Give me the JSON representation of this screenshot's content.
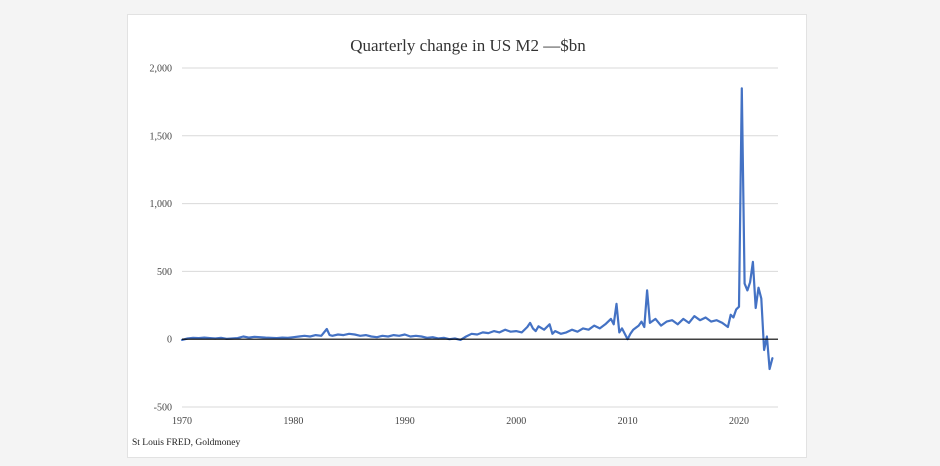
{
  "chart_data": {
    "type": "line",
    "title": "Quarterly change in US M2 —$bn",
    "source": "St Louis FRED, Goldmoney",
    "xlabel": "",
    "ylabel": "",
    "xlim": [
      1970,
      2023.5
    ],
    "ylim": [
      -500,
      2000
    ],
    "x_ticks": [
      1970,
      1980,
      1990,
      2000,
      2010,
      2020
    ],
    "y_ticks": [
      -500,
      0,
      500,
      1000,
      1500,
      2000
    ],
    "y_tick_labels": [
      "-500",
      "0",
      "500",
      "1,000",
      "1,500",
      "2,000"
    ],
    "grid": "horizontal",
    "line_color": "#4472c4",
    "zero_line_color": "#000000",
    "series": [
      {
        "x": [
          1970.0,
          1970.5,
          1971.0,
          1971.5,
          1972.0,
          1972.5,
          1973.0,
          1973.5,
          1974.0,
          1974.5,
          1975.0,
          1975.5,
          1976.0,
          1976.5,
          1977.0,
          1977.5,
          1978.0,
          1978.5,
          1979.0,
          1979.5,
          1980.0,
          1980.5,
          1981.0,
          1981.5,
          1982.0,
          1982.5,
          1983.0,
          1983.25,
          1983.5,
          1984.0,
          1984.5,
          1985.0,
          1985.5,
          1986.0,
          1986.5,
          1987.0,
          1987.5,
          1988.0,
          1988.5,
          1989.0,
          1989.5,
          1990.0,
          1990.5,
          1991.0,
          1991.5,
          1992.0,
          1992.5,
          1993.0,
          1993.5,
          1994.0,
          1994.5,
          1995.0,
          1995.5,
          1996.0,
          1996.5,
          1997.0,
          1997.5,
          1998.0,
          1998.5,
          1999.0,
          1999.5,
          2000.0,
          2000.5,
          2001.0,
          2001.25,
          2001.5,
          2001.75,
          2002.0,
          2002.5,
          2003.0,
          2003.25,
          2003.5,
          2004.0,
          2004.5,
          2005.0,
          2005.5,
          2006.0,
          2006.5,
          2007.0,
          2007.5,
          2008.0,
          2008.5,
          2008.75,
          2009.0,
          2009.25,
          2009.5,
          2010.0,
          2010.25,
          2010.5,
          2011.0,
          2011.25,
          2011.5,
          2011.75,
          2012.0,
          2012.5,
          2013.0,
          2013.5,
          2014.0,
          2014.5,
          2015.0,
          2015.5,
          2016.0,
          2016.5,
          2017.0,
          2017.5,
          2018.0,
          2018.5,
          2019.0,
          2019.25,
          2019.5,
          2019.75,
          2020.0,
          2020.25,
          2020.5,
          2020.75,
          2021.0,
          2021.25,
          2021.5,
          2021.75,
          2022.0,
          2022.25,
          2022.5,
          2022.75,
          2023.0
        ],
        "y": [
          -5,
          5,
          10,
          8,
          12,
          8,
          5,
          10,
          3,
          5,
          8,
          20,
          12,
          18,
          15,
          12,
          10,
          8,
          12,
          10,
          15,
          20,
          25,
          20,
          30,
          25,
          75,
          30,
          25,
          35,
          30,
          40,
          35,
          25,
          30,
          20,
          15,
          25,
          20,
          30,
          25,
          35,
          20,
          25,
          20,
          10,
          15,
          5,
          10,
          0,
          5,
          -5,
          20,
          40,
          35,
          50,
          45,
          60,
          50,
          70,
          55,
          60,
          50,
          90,
          120,
          80,
          60,
          95,
          70,
          110,
          40,
          60,
          40,
          50,
          70,
          55,
          80,
          70,
          100,
          80,
          110,
          150,
          110,
          260,
          50,
          80,
          0,
          40,
          70,
          100,
          130,
          90,
          360,
          120,
          150,
          100,
          130,
          140,
          110,
          150,
          120,
          170,
          140,
          160,
          130,
          140,
          120,
          90,
          180,
          160,
          220,
          240,
          1850,
          410,
          360,
          420,
          570,
          230,
          380,
          300,
          -80,
          20,
          -220,
          -140
        ],
        "note": "values estimated from the plotted line"
      }
    ]
  }
}
